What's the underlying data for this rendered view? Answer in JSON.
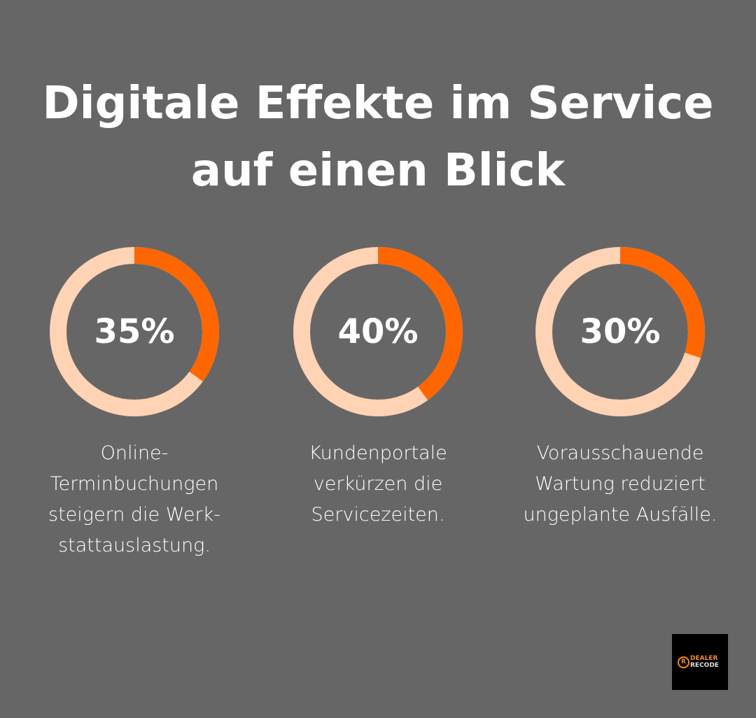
{
  "title_line1": "Digitale Effekte im Service",
  "title_line2": "auf einen Blick",
  "colors": {
    "background": "#666666",
    "accent": "#FF6600",
    "track": "#FFD3B3"
  },
  "chart_data": [
    {
      "type": "pie",
      "variant": "donut",
      "value": 35,
      "label": "35%",
      "description": "Online-Terminbuchungen steigern die Werk-stattauslastung."
    },
    {
      "type": "pie",
      "variant": "donut",
      "value": 40,
      "label": "40%",
      "description": "Kundenportale verkürzen die Servicezeiten."
    },
    {
      "type": "pie",
      "variant": "donut",
      "value": 30,
      "label": "30%",
      "description": "Vorausschauende Wartung reduziert ungeplante Ausfälle."
    }
  ],
  "logo": {
    "line1": "DEALER",
    "line2": "RECODE"
  }
}
